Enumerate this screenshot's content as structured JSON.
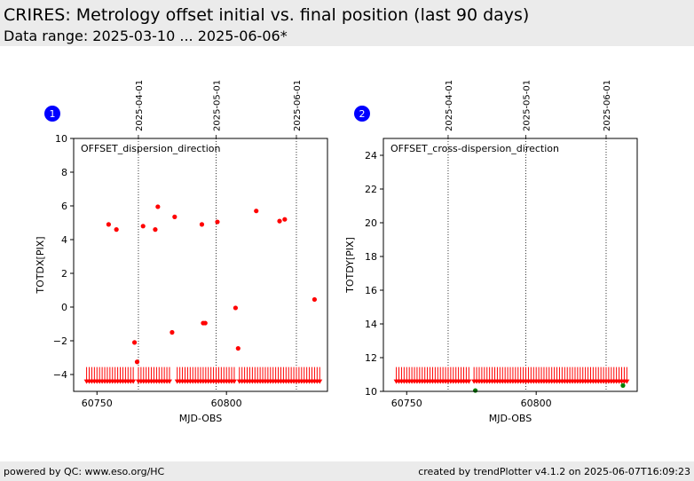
{
  "header": {
    "title": "CRIRES: Metrology offset initial vs. final position (last 90 days)",
    "subtitle": "Data range: 2025-03-10 ... 2025-06-06*"
  },
  "footer": {
    "left": "powered by QC: www.eso.org/HC",
    "right": "created by trendPlotter v4.1.2 on 2025-06-07T16:09:23"
  },
  "colors": {
    "initial": "#ff0000",
    "final": "#008000",
    "badge": "#0000ff"
  },
  "chart_data": [
    {
      "type": "scatter",
      "badge": "1",
      "annotation": "OFFSET_dispersion_direction",
      "xlabel": "MJD-OBS",
      "ylabel": "TOTDX[PIX]",
      "xlim": [
        60741,
        60839
      ],
      "ylim": [
        -5,
        10
      ],
      "xticks": [
        60750,
        60800
      ],
      "yticks": [
        -4,
        -2,
        0,
        2,
        4,
        6,
        8,
        10
      ],
      "date_lines": [
        {
          "x": 60766,
          "label": "2025-04-01"
        },
        {
          "x": 60796,
          "label": "2025-05-01"
        },
        {
          "x": 60827,
          "label": "2025-06-01"
        }
      ],
      "marker_band": {
        "y": -4.4,
        "x_segments": [
          [
            60746,
            60764
          ],
          [
            60766,
            60778
          ],
          [
            60781,
            60803
          ],
          [
            60805,
            60836
          ]
        ],
        "step": 1
      },
      "points": [
        {
          "x": 60754.5,
          "y": 4.9
        },
        {
          "x": 60757.5,
          "y": 4.6
        },
        {
          "x": 60764.5,
          "y": -2.1
        },
        {
          "x": 60765.5,
          "y": -3.25
        },
        {
          "x": 60767.8,
          "y": 4.8
        },
        {
          "x": 60772.5,
          "y": 4.6
        },
        {
          "x": 60773.5,
          "y": 5.95
        },
        {
          "x": 60779,
          "y": -1.5
        },
        {
          "x": 60780,
          "y": 5.35
        },
        {
          "x": 60790.5,
          "y": 4.9
        },
        {
          "x": 60791,
          "y": -0.95
        },
        {
          "x": 60791.8,
          "y": -0.95
        },
        {
          "x": 60796.5,
          "y": 5.05
        },
        {
          "x": 60803.5,
          "y": -0.05
        },
        {
          "x": 60804.5,
          "y": -2.45
        },
        {
          "x": 60811.5,
          "y": 5.7
        },
        {
          "x": 60820.5,
          "y": 5.1
        },
        {
          "x": 60822.5,
          "y": 5.2
        },
        {
          "x": 60834,
          "y": 0.45
        }
      ],
      "final_points": []
    },
    {
      "type": "scatter",
      "badge": "2",
      "annotation": "OFFSET_cross-dispersion_direction",
      "xlabel": "MJD-OBS",
      "ylabel": "TOTDY[PIX]",
      "xlim": [
        60741,
        60839
      ],
      "ylim": [
        10,
        25
      ],
      "xticks": [
        60750,
        60800
      ],
      "yticks": [
        10,
        12,
        14,
        16,
        18,
        20,
        22,
        24
      ],
      "date_lines": [
        {
          "x": 60766,
          "label": "2025-04-01"
        },
        {
          "x": 60796,
          "label": "2025-05-01"
        },
        {
          "x": 60827,
          "label": "2025-06-01"
        }
      ],
      "marker_band": {
        "y": 10.6,
        "x_segments": [
          [
            60746,
            60766
          ],
          [
            60767,
            60774
          ],
          [
            60776,
            60835
          ]
        ],
        "step": 1
      },
      "points": [],
      "final_points": [
        {
          "x": 60776.5,
          "y": 10.05
        },
        {
          "x": 60833.5,
          "y": 10.35
        }
      ]
    }
  ]
}
